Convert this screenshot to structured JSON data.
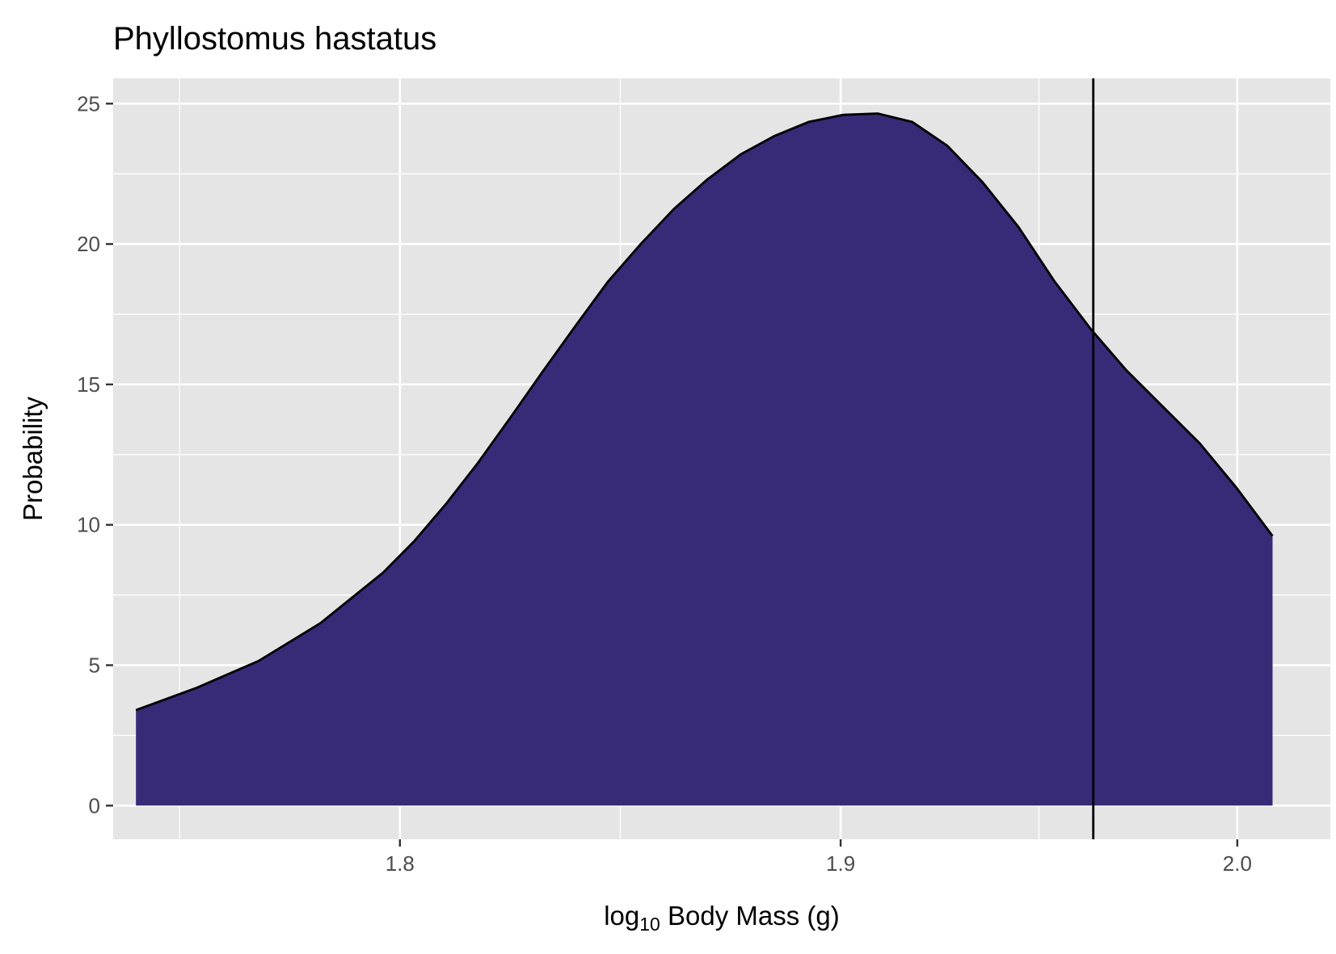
{
  "chart_data": {
    "type": "area",
    "title": "Phyllostomus hastatus",
    "xlabel": {
      "prefix": "log",
      "subscript": "10",
      "suffix": " Body Mass (g)"
    },
    "ylabel": "Probability",
    "x_scale": "reciprocal",
    "xlim": [
      1.7404,
      2.025
    ],
    "ylim": [
      -1.2,
      25.9
    ],
    "x_ticks": [
      1.8,
      1.9,
      2.0
    ],
    "x_tick_labels": [
      "1.8",
      "1.9",
      "2.0"
    ],
    "y_ticks": [
      0,
      5,
      10,
      15,
      20,
      25
    ],
    "y_tick_labels": [
      "0",
      "5",
      "10",
      "15",
      "20",
      "25"
    ],
    "grid": true,
    "fill_color": "#372a77",
    "line_color": "#000000",
    "background_color": "#e5e5e5",
    "grid_color": "#ffffff",
    "vline": {
      "x": 1.9625
    },
    "series": [
      {
        "x": [
          1.745,
          1.7574,
          1.7701,
          1.7831,
          1.7964,
          1.803,
          1.81,
          1.8169,
          1.824,
          1.8312,
          1.8384,
          1.8458,
          1.8533,
          1.8609,
          1.8686,
          1.8764,
          1.8843,
          1.8924,
          1.9006,
          1.9089,
          1.9173,
          1.9259,
          1.9346,
          1.9436,
          1.9525,
          1.9617,
          1.971,
          1.9805,
          1.9901,
          1.9999,
          2.0094
        ],
        "y": [
          3.4,
          4.2,
          5.15,
          6.5,
          8.3,
          9.4,
          10.75,
          12.2,
          13.8,
          15.45,
          17.05,
          18.65,
          20.0,
          21.25,
          22.3,
          23.2,
          23.85,
          24.35,
          24.6,
          24.65,
          24.35,
          23.5,
          22.2,
          20.6,
          18.7,
          17.0,
          15.5,
          14.2,
          12.9,
          11.3,
          9.6
        ]
      }
    ]
  }
}
